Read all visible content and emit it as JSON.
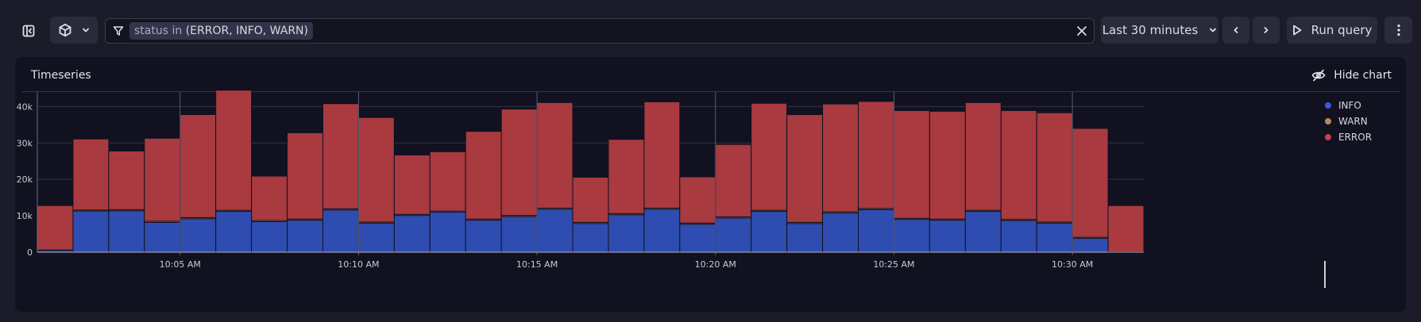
{
  "toolbar": {
    "sidebar_toggle_icon": "sidebar-collapse-icon",
    "source_icon": "cube-icon",
    "filter_icon": "filter-icon",
    "filter_chip_key": "status in",
    "filter_chip_value": "(ERROR, INFO, WARN)",
    "clear_icon": "close-icon",
    "time_range_label": "Last 30 minutes",
    "run_label": "Run query",
    "more_icon": "kebab-icon"
  },
  "panel": {
    "title": "Timeseries",
    "hide_chart_label": "Hide chart"
  },
  "colors": {
    "INFO": "#2f4db0",
    "WARN": "#b78b57",
    "ERROR": "#a93a40"
  },
  "chart_data": {
    "type": "bar",
    "stacked": true,
    "y_ticks": [
      "0",
      "10k",
      "20k",
      "30k",
      "40k"
    ],
    "ylim": [
      0,
      44000
    ],
    "x_ticks": [
      "10:05 AM",
      "10:10 AM",
      "10:15 AM",
      "10:20 AM",
      "10:25 AM",
      "10:30 AM"
    ],
    "legend_position": "top-right",
    "grid": true,
    "series": [
      {
        "name": "INFO",
        "values": [
          500,
          11300,
          11400,
          8200,
          9200,
          11200,
          8400,
          8800,
          11600,
          8000,
          10100,
          11000,
          8800,
          9800,
          11800,
          7900,
          10300,
          11800,
          7700,
          9400,
          11200,
          7900,
          10800,
          11700,
          9000,
          8800,
          11200,
          8700,
          8000,
          3800,
          0
        ]
      },
      {
        "name": "WARN",
        "values": [
          100,
          300,
          300,
          300,
          300,
          300,
          300,
          300,
          300,
          300,
          300,
          300,
          300,
          300,
          300,
          300,
          300,
          300,
          300,
          300,
          300,
          300,
          300,
          300,
          300,
          300,
          300,
          300,
          300,
          300,
          100
        ]
      },
      {
        "name": "ERROR",
        "values": [
          12200,
          19500,
          16100,
          22800,
          28300,
          33000,
          12200,
          23700,
          28900,
          28700,
          16300,
          16300,
          24100,
          29200,
          29000,
          12400,
          20400,
          29200,
          12700,
          19900,
          29400,
          29600,
          29600,
          29400,
          29600,
          29600,
          29600,
          29900,
          30000,
          29900,
          12700
        ]
      }
    ]
  }
}
